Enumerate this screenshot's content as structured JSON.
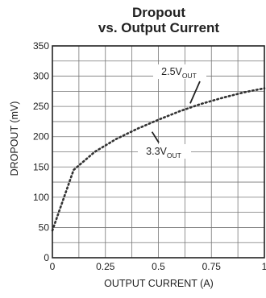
{
  "chart_data": {
    "type": "line",
    "title": [
      "Dropout",
      "vs. Output Current"
    ],
    "xlabel": "OUTPUT CURRENT (A)",
    "ylabel": "DROPOUT (mV)",
    "xlim": [
      0,
      1
    ],
    "ylim": [
      0,
      350
    ],
    "xticks": [
      0,
      0.25,
      0.5,
      0.75,
      1
    ],
    "xtick_labels": [
      "0",
      "0.25",
      "0.5",
      "0.75",
      "1"
    ],
    "yticks": [
      0,
      50,
      100,
      150,
      200,
      250,
      300,
      350
    ],
    "ytick_labels": [
      "0",
      "50",
      "100",
      "150",
      "200",
      "250",
      "300",
      "350"
    ],
    "x_minor_step": 0.125,
    "grid": true,
    "colors": {
      "line": "#333333",
      "grid": "#777777",
      "frame": "#222222"
    },
    "series": [
      {
        "x": [
          0,
          0.1,
          0.2,
          0.3,
          0.4,
          0.5,
          0.6,
          0.7,
          0.8,
          0.9,
          1.0
        ],
        "values": [
          45,
          145,
          175,
          196,
          213,
          228,
          242,
          254,
          264,
          273,
          280
        ]
      }
    ],
    "annotations": [
      {
        "base": "2.5V",
        "sub": "OUT",
        "x": 0.65,
        "y": 255
      },
      {
        "base": "3.3V",
        "sub": "OUT",
        "x": 0.47,
        "y": 208
      }
    ]
  }
}
